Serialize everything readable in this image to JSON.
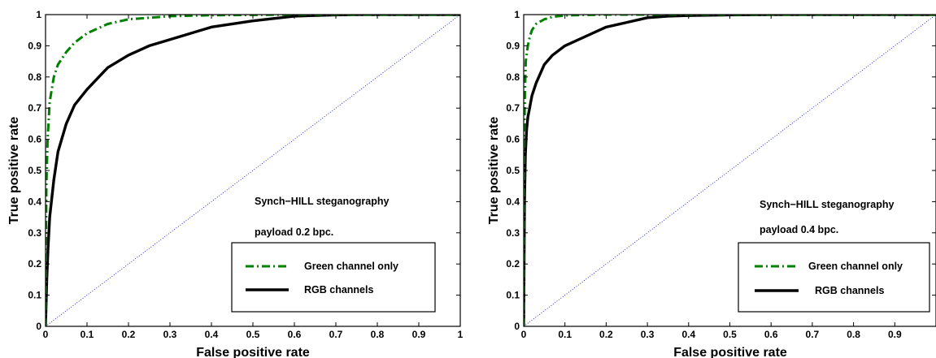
{
  "chart_data": [
    {
      "type": "line",
      "xlabel": "False positive rate",
      "ylabel": "True positive rate",
      "xlim": [
        0,
        1
      ],
      "ylim": [
        0,
        1
      ],
      "xticks": [
        "0",
        "0.1",
        "0.2",
        "0.3",
        "0.4",
        "0.5",
        "0.6",
        "0.7",
        "0.8",
        "0.9",
        "1"
      ],
      "yticks": [
        "0",
        "0.1",
        "0.2",
        "0.3",
        "0.4",
        "0.5",
        "0.6",
        "0.7",
        "0.8",
        "0.9",
        "1"
      ],
      "grid": false,
      "legend_position": "bottom-right",
      "annotations": [
        "Synch−HILL steganography",
        "payload 0.2 bpc."
      ],
      "series": [
        {
          "name": "Green channel only",
          "color": "#008000",
          "style": "dash-dot",
          "x": [
            0,
            0.002,
            0.005,
            0.01,
            0.02,
            0.03,
            0.05,
            0.07,
            0.1,
            0.15,
            0.2,
            0.25,
            0.3,
            0.4,
            0.5,
            0.6,
            0.7,
            0.8,
            1.0
          ],
          "y": [
            0,
            0.45,
            0.6,
            0.72,
            0.8,
            0.84,
            0.88,
            0.91,
            0.94,
            0.97,
            0.985,
            0.99,
            0.995,
            0.998,
            0.999,
            1.0,
            1.0,
            1.0,
            1.0
          ]
        },
        {
          "name": "RGB channels",
          "color": "#000000",
          "style": "solid",
          "x": [
            0,
            0.003,
            0.006,
            0.01,
            0.02,
            0.03,
            0.05,
            0.07,
            0.1,
            0.15,
            0.2,
            0.25,
            0.3,
            0.4,
            0.5,
            0.6,
            0.7,
            0.75,
            0.8,
            0.9,
            1.0
          ],
          "y": [
            0,
            0.15,
            0.25,
            0.35,
            0.47,
            0.56,
            0.65,
            0.71,
            0.76,
            0.83,
            0.87,
            0.9,
            0.92,
            0.96,
            0.98,
            0.995,
            0.999,
            1.0,
            1.0,
            1.0,
            1.0
          ]
        },
        {
          "name": "",
          "color": "#0000cc",
          "style": "dotted",
          "x": [
            0,
            1
          ],
          "y": [
            0,
            1
          ]
        }
      ]
    },
    {
      "type": "line",
      "xlabel": "False positive rate",
      "ylabel": "True positive rate",
      "xlim": [
        0,
        1
      ],
      "ylim": [
        0,
        1
      ],
      "xticks": [
        "0",
        "0.1",
        "0.2",
        "0.3",
        "0.4",
        "0.5",
        "0.6",
        "0.7",
        "0.8",
        "0.9"
      ],
      "yticks": [
        "0",
        "0.1",
        "0.2",
        "0.3",
        "0.4",
        "0.5",
        "0.6",
        "0.7",
        "0.8",
        "0.9",
        "1"
      ],
      "grid": false,
      "legend_position": "bottom-right",
      "annotations": [
        "Synch−HILL steganography",
        "payload 0.4 bpc."
      ],
      "series": [
        {
          "name": "Green channel only",
          "color": "#008000",
          "style": "dash-dot",
          "x": [
            0,
            0.001,
            0.003,
            0.005,
            0.01,
            0.015,
            0.02,
            0.03,
            0.05,
            0.07,
            0.1,
            0.15,
            0.2,
            0.3,
            1.0
          ],
          "y": [
            0,
            0.55,
            0.75,
            0.85,
            0.9,
            0.93,
            0.95,
            0.97,
            0.985,
            0.993,
            0.997,
            0.999,
            1.0,
            1.0,
            1.0
          ]
        },
        {
          "name": "RGB channels",
          "color": "#000000",
          "style": "solid",
          "x": [
            0,
            0.002,
            0.004,
            0.007,
            0.01,
            0.02,
            0.03,
            0.05,
            0.07,
            0.1,
            0.15,
            0.2,
            0.25,
            0.3,
            0.35,
            0.4,
            0.5,
            0.6,
            0.7,
            1.0
          ],
          "y": [
            0,
            0.4,
            0.55,
            0.63,
            0.67,
            0.74,
            0.78,
            0.84,
            0.87,
            0.9,
            0.93,
            0.96,
            0.975,
            0.99,
            0.995,
            0.997,
            0.999,
            1.0,
            1.0,
            1.0
          ]
        },
        {
          "name": "",
          "color": "#0000cc",
          "style": "dotted",
          "x": [
            0,
            1
          ],
          "y": [
            0,
            1
          ]
        }
      ]
    }
  ]
}
